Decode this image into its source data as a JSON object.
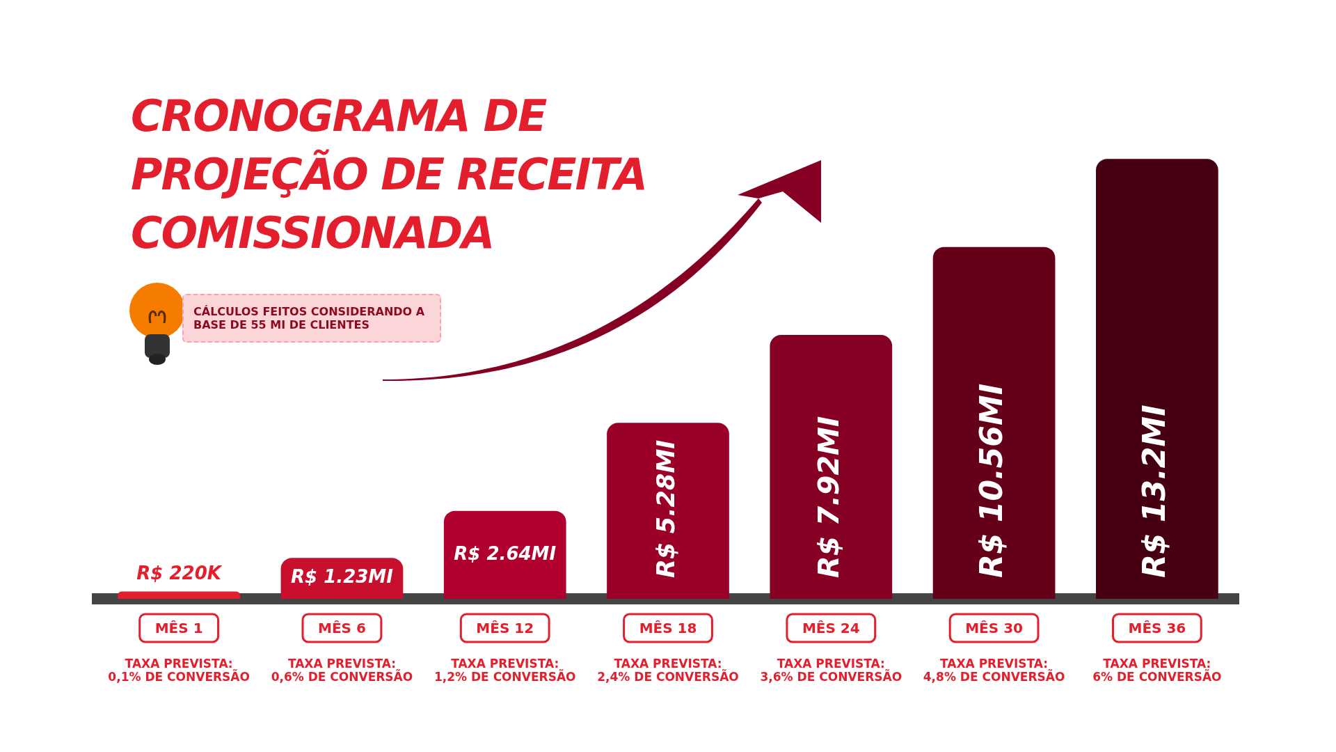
{
  "chart_data": {
    "type": "bar",
    "title": "CRONOGRAMA DE PROJEÇÃO DE RECEITA COMISSIONADA",
    "categories": [
      "MÊS 1",
      "MÊS 6",
      "MÊS 12",
      "MÊS 18",
      "MÊS 24",
      "MÊS 30",
      "MÊS 36"
    ],
    "values": [
      0.22,
      1.23,
      2.64,
      5.28,
      7.92,
      10.56,
      13.2
    ],
    "value_labels": [
      "R$ 220K",
      "R$ 1.23MI",
      "R$ 2.64MI",
      "R$ 5.28MI",
      "R$ 7.92MI",
      "R$ 10.56MI",
      "R$ 13.2MI"
    ],
    "colors": [
      "#e41f2d",
      "#c8102e",
      "#b0002e",
      "#9a0028",
      "#850022",
      "#650019",
      "#460012"
    ],
    "annotations": [
      "CÁLCULOS FEITOS CONSIDERANDO A BASE DE 55 MI DE CLIENTES",
      "TAXA PREVISTA:\n0,1% DE CONVERSÃO",
      "TAXA PREVISTA:\n0,6% DE CONVERSÃO",
      "TAXA PREVISTA:\n1,2% DE CONVERSÃO",
      "TAXA PREVISTA:\n2,4% DE CONVERSÃO",
      "TAXA PREVISTA:\n3,6% DE CONVERSÃO",
      "TAXA PREVISTA:\n4,8% DE CONVERSÃO",
      "TAXA PREVISTA:\n6% DE CONVERSÃO"
    ],
    "grid": false,
    "legend": false
  }
}
